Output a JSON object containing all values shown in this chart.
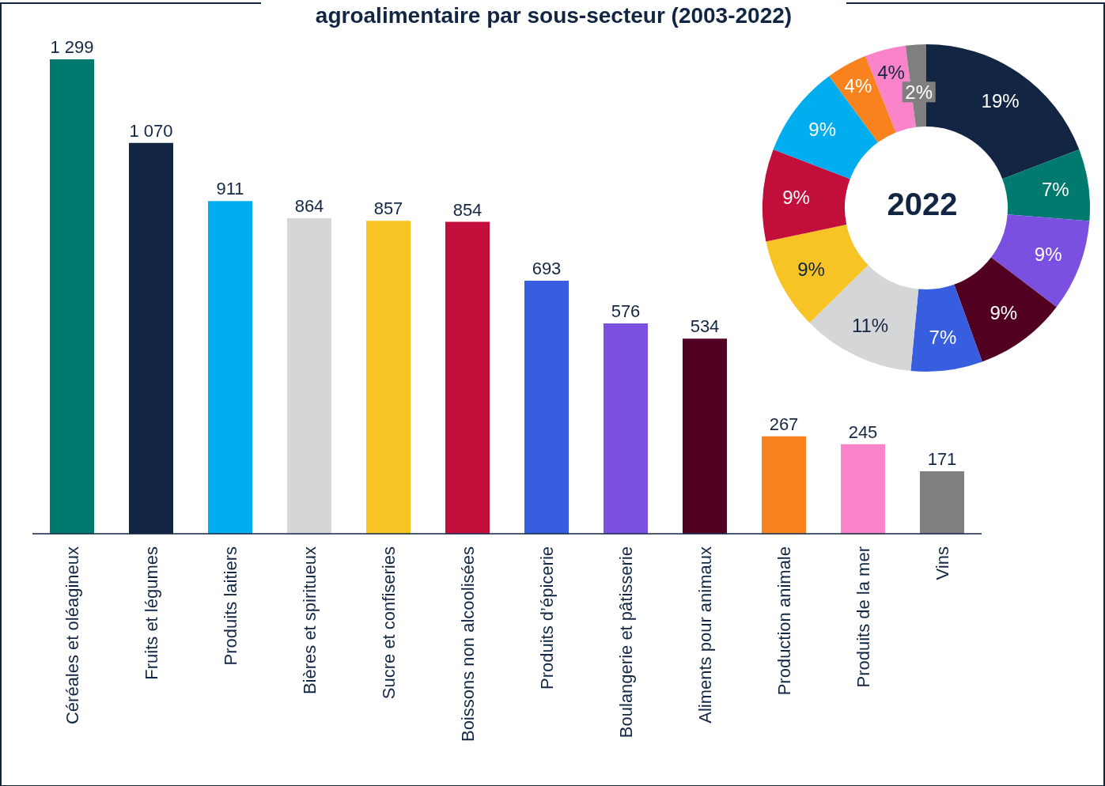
{
  "chart_data": [
    {
      "type": "bar",
      "title": "agroalimentaire par sous-secteur (2003-2022)",
      "categories": [
        "Céréales et oléagineux",
        "Fruits et légumes",
        "Produits laitiers",
        "Bières et spiritueux",
        "Sucre et confiseries",
        "Boissons non alcoolisées",
        "Produits d’épicerie",
        "Boulangerie et pâtisserie",
        "Aliments pour animaux",
        "Production animale",
        "Produits de la mer",
        "Vins"
      ],
      "values": [
        1299,
        1070,
        911,
        864,
        857,
        854,
        693,
        576,
        534,
        267,
        245,
        171
      ],
      "value_labels": [
        "1 299",
        "1 070",
        "911",
        "864",
        "857",
        "854",
        "693",
        "576",
        "534",
        "267",
        "245",
        "171"
      ],
      "colors": [
        "#007a6e",
        "#122643",
        "#00aeef",
        "#d5d6d8",
        "#f8c325",
        "#c20e3a",
        "#385ee0",
        "#7b4fe0",
        "#520022",
        "#f7821e",
        "#f984c9",
        "#7f7f7f"
      ]
    },
    {
      "type": "donut",
      "annotations": [
        "2022"
      ],
      "categories": [
        null,
        null,
        null,
        null,
        null,
        null,
        null,
        null,
        null,
        null,
        null,
        null
      ],
      "values": [
        19,
        7,
        9,
        9,
        7,
        11,
        9,
        9,
        9,
        4,
        4,
        2
      ],
      "value_labels": [
        "19%",
        "7%",
        "9%",
        "9%",
        "7%",
        "11%",
        "9%",
        "9%",
        "9%",
        "4%",
        "4%",
        "2%"
      ],
      "colors": [
        "#122643",
        "#007a6e",
        "#7b4fe0",
        "#520022",
        "#385ee0",
        "#d5d6d8",
        "#f8c325",
        "#c20e3a",
        "#00aeef",
        "#f7821e",
        "#f984c9",
        "#7f7f7f"
      ]
    }
  ]
}
